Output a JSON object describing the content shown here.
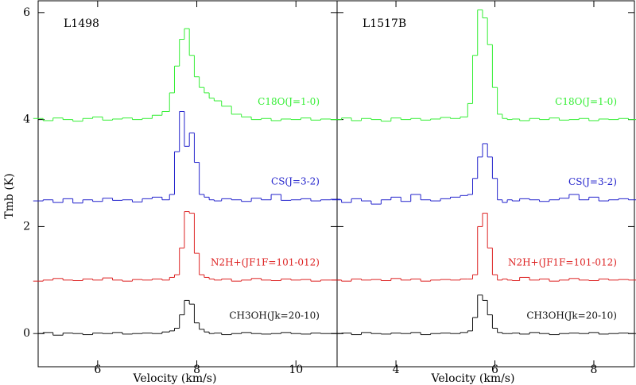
{
  "chart_data": [
    {
      "type": "line",
      "title": "L1498",
      "x_label": "Velocity (km/s)",
      "y_label": "Tmb (K)",
      "x": [
        4.8,
        5.0,
        5.2,
        5.4,
        5.6,
        5.8,
        6.0,
        6.2,
        6.4,
        6.6,
        6.8,
        7.0,
        7.2,
        7.4,
        7.5,
        7.6,
        7.7,
        7.8,
        7.9,
        8.0,
        8.1,
        8.2,
        8.3,
        8.4,
        8.6,
        8.8,
        9.0,
        9.2,
        9.4,
        9.6,
        9.8,
        10.0,
        10.2,
        10.4,
        10.6,
        10.8
      ],
      "series": [
        {
          "name": "C18O(J=1-0)",
          "color": "#33ee33",
          "values": [
            4.02,
            3.98,
            4.03,
            4.0,
            3.97,
            4.02,
            4.05,
            3.99,
            4.01,
            4.03,
            4.0,
            4.02,
            4.08,
            4.15,
            4.5,
            5.0,
            5.5,
            5.7,
            5.2,
            4.8,
            4.6,
            4.5,
            4.4,
            4.35,
            4.25,
            4.1,
            4.05,
            4.0,
            4.02,
            3.98,
            4.01,
            4.0,
            4.03,
            3.99,
            4.01,
            4.0
          ]
        },
        {
          "name": "CS(J=3-2)",
          "color": "#2222cc",
          "values": [
            2.48,
            2.5,
            2.45,
            2.52,
            2.44,
            2.5,
            2.47,
            2.53,
            2.49,
            2.5,
            2.46,
            2.52,
            2.55,
            2.5,
            2.6,
            3.4,
            4.15,
            3.5,
            3.75,
            3.2,
            2.6,
            2.55,
            2.5,
            2.48,
            2.52,
            2.5,
            2.47,
            2.53,
            2.5,
            2.6,
            2.49,
            2.5,
            2.52,
            2.48,
            2.5,
            2.51
          ]
        },
        {
          "name": "N2H+(JF1F=101-012)",
          "color": "#dd2222",
          "values": [
            0.98,
            1.0,
            1.03,
            1.0,
            0.99,
            1.02,
            1.0,
            1.04,
            1.0,
            0.98,
            1.01,
            1.0,
            1.02,
            1.0,
            1.05,
            1.1,
            1.6,
            2.28,
            2.25,
            1.5,
            1.1,
            1.05,
            1.02,
            1.0,
            1.02,
            0.98,
            1.0,
            1.03,
            1.0,
            0.99,
            1.02,
            1.0,
            1.01,
            0.98,
            1.0,
            1.0
          ]
        },
        {
          "name": "CH3OH(Jk=20-10)",
          "color": "#111111",
          "values": [
            0.0,
            0.02,
            -0.03,
            0.01,
            0.0,
            -0.02,
            0.01,
            0.0,
            0.02,
            -0.01,
            0.0,
            0.01,
            0.0,
            0.03,
            0.05,
            0.1,
            0.35,
            0.62,
            0.55,
            0.2,
            0.08,
            0.03,
            0.0,
            0.01,
            -0.02,
            0.0,
            0.02,
            0.0,
            -0.01,
            0.0,
            0.02,
            0.0,
            -0.01,
            0.01,
            0.0,
            0.0
          ]
        }
      ],
      "xlim": [
        4.8,
        10.83
      ],
      "ylim": [
        -0.62,
        6.22
      ],
      "xticks": [
        6,
        8,
        10
      ],
      "yticks": [
        0,
        2,
        4,
        6
      ]
    },
    {
      "type": "line",
      "title": "L1517B",
      "x_label": "Velocity (km/s)",
      "x": [
        2.8,
        3.0,
        3.2,
        3.4,
        3.6,
        3.8,
        4.0,
        4.2,
        4.4,
        4.6,
        4.8,
        5.0,
        5.2,
        5.4,
        5.5,
        5.6,
        5.7,
        5.8,
        5.9,
        6.0,
        6.1,
        6.2,
        6.3,
        6.4,
        6.6,
        6.8,
        7.0,
        7.2,
        7.4,
        7.6,
        7.8,
        8.0,
        8.2,
        8.4,
        8.6,
        8.8
      ],
      "series": [
        {
          "name": "C18O(J=1-0)",
          "color": "#33ee33",
          "values": [
            4.0,
            4.03,
            3.98,
            4.02,
            4.0,
            3.97,
            4.03,
            4.0,
            4.02,
            3.99,
            4.01,
            4.04,
            4.02,
            4.05,
            4.3,
            5.2,
            6.05,
            5.9,
            5.4,
            4.6,
            4.1,
            4.02,
            4.0,
            4.01,
            3.98,
            4.02,
            4.0,
            4.03,
            3.99,
            4.0,
            4.02,
            3.98,
            4.01,
            4.0,
            4.02,
            4.0
          ]
        },
        {
          "name": "CS(J=3-2)",
          "color": "#2222cc",
          "values": [
            2.5,
            2.45,
            2.52,
            2.48,
            2.42,
            2.5,
            2.55,
            2.47,
            2.6,
            2.5,
            2.48,
            2.52,
            2.55,
            2.58,
            2.6,
            2.9,
            3.3,
            3.55,
            3.3,
            2.9,
            2.5,
            2.45,
            2.5,
            2.48,
            2.52,
            2.5,
            2.47,
            2.5,
            2.53,
            2.6,
            2.5,
            2.55,
            2.48,
            2.5,
            2.52,
            2.5
          ]
        },
        {
          "name": "N2H+(JF1F=101-012)",
          "color": "#dd2222",
          "values": [
            1.0,
            0.98,
            1.02,
            1.0,
            1.01,
            0.99,
            1.03,
            1.0,
            1.02,
            0.98,
            1.0,
            1.01,
            1.0,
            1.02,
            1.02,
            1.1,
            2.0,
            2.25,
            1.6,
            1.1,
            1.0,
            1.02,
            1.0,
            0.99,
            1.05,
            1.0,
            1.02,
            0.98,
            1.0,
            1.03,
            1.0,
            0.99,
            1.02,
            1.0,
            1.01,
            1.0
          ]
        },
        {
          "name": "CH3OH(Jk=20-10)",
          "color": "#111111",
          "values": [
            0.0,
            0.01,
            -0.02,
            0.02,
            0.0,
            -0.01,
            0.01,
            0.0,
            0.02,
            -0.02,
            0.0,
            0.01,
            0.0,
            0.02,
            0.05,
            0.3,
            0.72,
            0.62,
            0.35,
            0.1,
            0.02,
            0.0,
            0.0,
            0.01,
            -0.01,
            0.02,
            0.0,
            -0.02,
            0.0,
            0.01,
            0.0,
            0.02,
            -0.01,
            0.0,
            0.01,
            0.0
          ]
        }
      ],
      "xlim": [
        2.81,
        8.82
      ],
      "ylim": [
        -0.62,
        6.22
      ],
      "xticks": [
        4,
        6,
        8
      ],
      "yticks": [
        0,
        2,
        4,
        6
      ]
    }
  ]
}
